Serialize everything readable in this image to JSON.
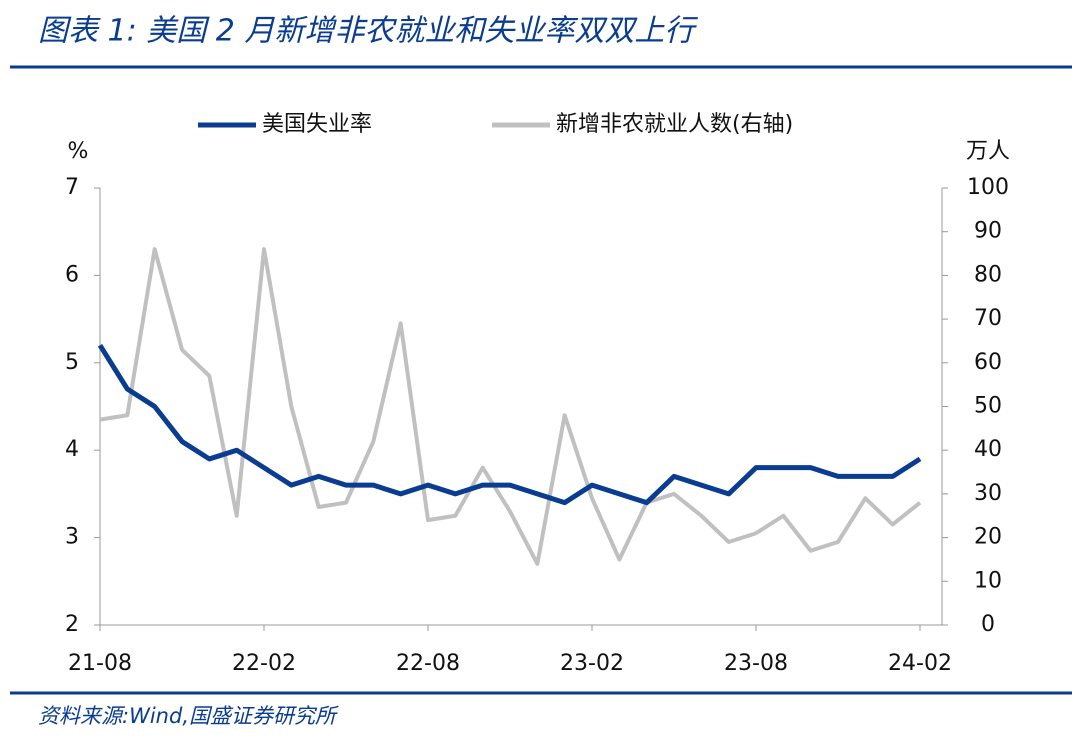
{
  "chart_data": {
    "type": "line",
    "title": "图表 1:  美国 2 月新增非农就业和失业率双双上行",
    "source": "资料来源:Wind,国盛证券研究所",
    "ylabel": "%",
    "y2label": "万人",
    "categories": [
      "21-08",
      null,
      null,
      null,
      null,
      null,
      "22-02",
      null,
      null,
      null,
      null,
      null,
      "22-08",
      null,
      null,
      null,
      null,
      null,
      "23-02",
      null,
      null,
      null,
      null,
      null,
      "23-08",
      null,
      null,
      null,
      null,
      null,
      "24-02"
    ],
    "series": [
      {
        "name": "美国失业率",
        "color": "#0a3d91",
        "values": [
          5.2,
          4.7,
          4.5,
          4.1,
          3.9,
          4.0,
          3.8,
          3.6,
          3.7,
          3.6,
          3.6,
          3.5,
          3.6,
          3.5,
          3.6,
          3.6,
          3.5,
          3.4,
          3.6,
          3.5,
          3.4,
          3.7,
          3.6,
          3.5,
          3.8,
          3.8,
          3.8,
          3.7,
          3.7,
          3.7,
          3.9
        ]
      },
      {
        "name": "新增非农就业人数(右轴)",
        "color": "#c0c0c0",
        "axis": "y2",
        "values": [
          47,
          48,
          86,
          63,
          57,
          25,
          86,
          50,
          27,
          28,
          42,
          69,
          24,
          25,
          36,
          26,
          14,
          48,
          29,
          15,
          28,
          30,
          25,
          19,
          21,
          25,
          17,
          19,
          29,
          23,
          28
        ]
      }
    ],
    "ylim": [
      2,
      7
    ],
    "yticks": [
      2,
      3,
      4,
      5,
      6,
      7
    ],
    "y2lim": [
      0,
      100
    ],
    "y2ticks": [
      0,
      10,
      20,
      30,
      40,
      50,
      60,
      70,
      80,
      90,
      100
    ],
    "legend": "top",
    "grid": false
  }
}
